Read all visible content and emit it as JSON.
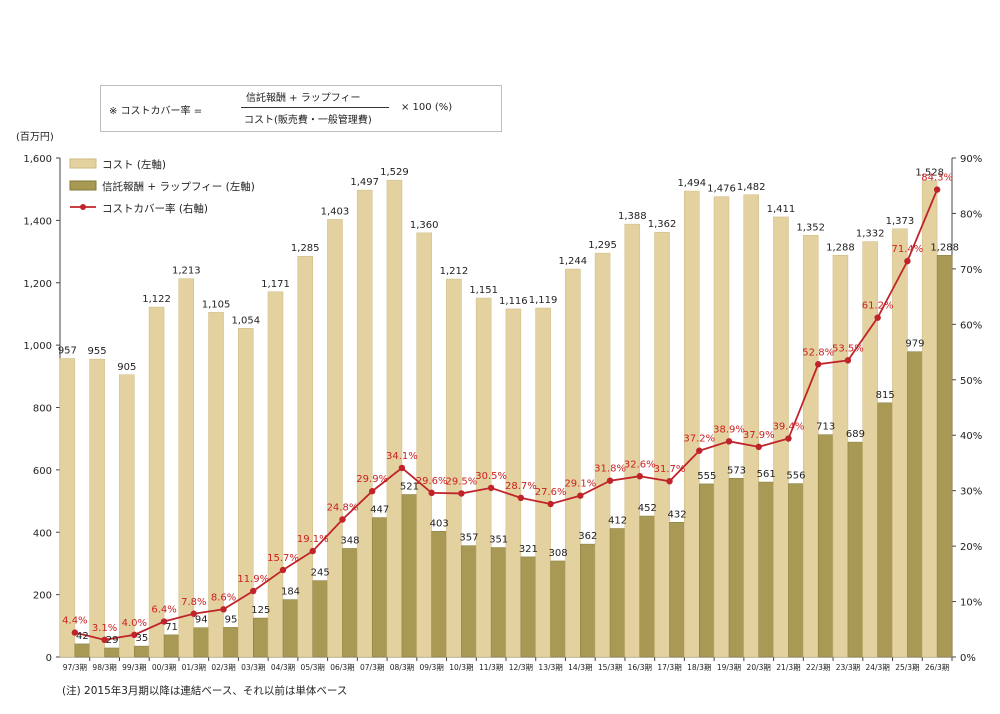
{
  "formula": {
    "prefix": "※ コストカバー率 =",
    "numerator": "信託報酬 + ラップフィー",
    "denominator": "コスト(販売費・一般管理費)",
    "suffix": "× 100 (%)"
  },
  "note": "(注) 2015年3月期以降は連結ベース、それ以前は単体ベース",
  "colors": {
    "cost_bar": "#e3d2a0",
    "fee_bar": "#a89a55",
    "ratio_line": "#c0242a"
  },
  "chart_data": {
    "type": "bar",
    "unit_label": "(百万円)",
    "categories": [
      "97/3期",
      "98/3期",
      "99/3期",
      "00/3期",
      "01/3期",
      "02/3期",
      "03/3期",
      "04/3期",
      "05/3期",
      "06/3期",
      "07/3期",
      "08/3期",
      "09/3期",
      "10/3期",
      "11/3期",
      "12/3期",
      "13/3期",
      "14/3期",
      "15/3期",
      "16/3期",
      "17/3期",
      "18/3期",
      "19/3期",
      "20/3期",
      "21/3期",
      "22/3期",
      "23/3期",
      "24/3期",
      "25/3期",
      "26/3期"
    ],
    "series": [
      {
        "name": "コスト (左軸)",
        "axis": "left",
        "type": "bar",
        "values": [
          957,
          955,
          905,
          1122,
          1213,
          1105,
          1054,
          1171,
          1285,
          1403,
          1497,
          1529,
          1360,
          1212,
          1151,
          1116,
          1119,
          1244,
          1295,
          1388,
          1362,
          1494,
          1476,
          1482,
          1411,
          1352,
          1288,
          1332,
          1373,
          1528
        ],
        "labels": [
          "957",
          "955",
          "905",
          "1,122",
          "1,213",
          "1,105",
          "1,054",
          "1,171",
          "1,285",
          "1,403",
          "1,497",
          "1,529",
          "1,360",
          "1,212",
          "1,151",
          "1,116",
          "1,119",
          "1,244",
          "1,295",
          "1,388",
          "1,362",
          "1,494",
          "1,476",
          "1,482",
          "1,411",
          "1,352",
          "1,288",
          "1,332",
          "1,373",
          "1,528"
        ]
      },
      {
        "name": "信託報酬 + ラップフィー (左軸)",
        "axis": "left",
        "type": "bar",
        "values": [
          42,
          29,
          35,
          71,
          94,
          95,
          125,
          184,
          245,
          348,
          447,
          521,
          403,
          357,
          351,
          321,
          308,
          362,
          412,
          452,
          432,
          555,
          573,
          561,
          556,
          713,
          689,
          815,
          979,
          1288
        ],
        "labels": [
          "42",
          "29",
          "35",
          "71",
          "94",
          "95",
          "125",
          "184",
          "245",
          "348",
          "447",
          "521",
          "403",
          "357",
          "351",
          "321",
          "308",
          "362",
          "412",
          "452",
          "432",
          "555",
          "573",
          "561",
          "556",
          "713",
          "689",
          "815",
          "979",
          "1,288"
        ]
      },
      {
        "name": "コストカバー率 (右軸)",
        "axis": "right",
        "type": "line",
        "values": [
          4.4,
          3.1,
          4.0,
          6.4,
          7.8,
          8.6,
          11.9,
          15.7,
          19.1,
          24.8,
          29.9,
          34.1,
          29.6,
          29.5,
          30.5,
          28.7,
          27.6,
          29.1,
          31.8,
          32.6,
          31.7,
          37.2,
          38.9,
          37.9,
          39.4,
          52.8,
          53.5,
          61.2,
          71.4,
          84.3
        ],
        "labels": [
          "4.4%",
          "3.1%",
          "4.0%",
          "6.4%",
          "7.8%",
          "8.6%",
          "11.9%",
          "15.7%",
          "19.1%",
          "24.8%",
          "29.9%",
          "34.1%",
          "29.6%",
          "29.5%",
          "30.5%",
          "28.7%",
          "27.6%",
          "29.1%",
          "31.8%",
          "32.6%",
          "31.7%",
          "37.2%",
          "38.9%",
          "37.9%",
          "39.4%",
          "52.8%",
          "53.5%",
          "61.2%",
          "71.4%",
          "84.3%"
        ]
      }
    ],
    "y_left": {
      "min": 0,
      "max": 1600,
      "ticks": [
        "0",
        "200",
        "400",
        "600",
        "800",
        "1,000",
        "1,200",
        "1,400",
        "1,600"
      ]
    },
    "y_right": {
      "min": 0,
      "max": 90,
      "ticks": [
        "0%",
        "10%",
        "20%",
        "30%",
        "40%",
        "50%",
        "60%",
        "70%",
        "80%",
        "90%"
      ]
    },
    "legend": [
      "コスト (左軸)",
      "信託報酬 + ラップフィー (左軸)",
      "コストカバー率 (右軸)"
    ],
    "legend_position": "top-left",
    "grid": false
  }
}
